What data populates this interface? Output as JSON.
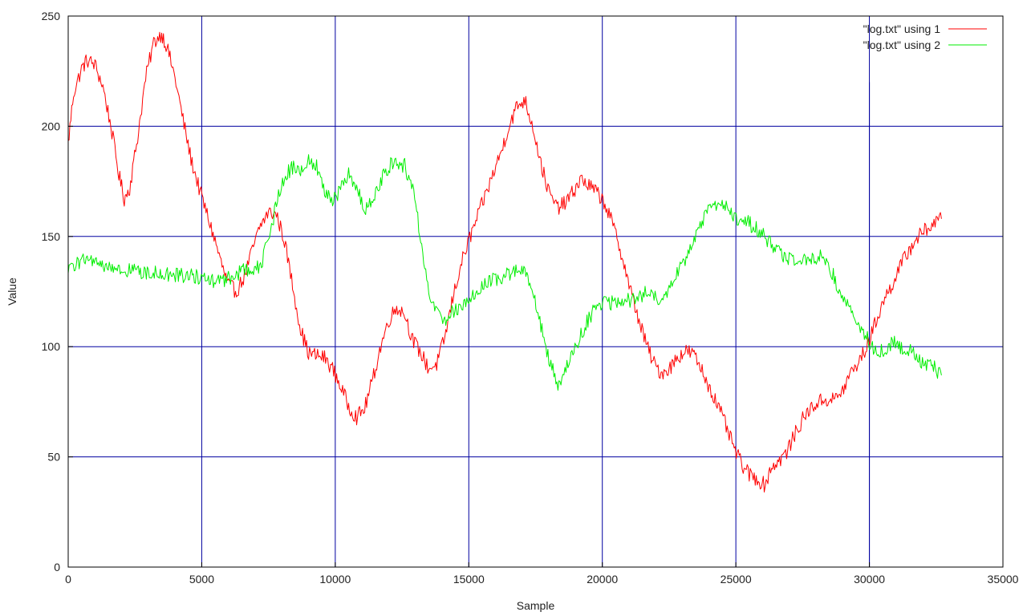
{
  "chart_data": {
    "type": "line",
    "title": "",
    "xlabel": "Sample",
    "ylabel": "Value",
    "xlim": [
      0,
      35000
    ],
    "ylim": [
      0,
      250
    ],
    "x_ticks": [
      0,
      5000,
      10000,
      15000,
      20000,
      25000,
      30000,
      35000
    ],
    "y_ticks": [
      0,
      50,
      100,
      150,
      200,
      250
    ],
    "grid": true,
    "legend_position": "top-right",
    "colors": {
      "grid": "#0000a0",
      "border": "#000000",
      "background": "#ffffff"
    },
    "series": [
      {
        "name": "\"log.txt\" using 1",
        "color": "#ff0000",
        "x": [
          0,
          200,
          500,
          700,
          1000,
          1300,
          1600,
          1900,
          2100,
          2300,
          2600,
          2900,
          3200,
          3500,
          3700,
          4000,
          4300,
          4600,
          4900,
          5200,
          5500,
          5800,
          6000,
          6300,
          6600,
          6900,
          7200,
          7500,
          7800,
          8100,
          8400,
          8700,
          9000,
          9300,
          9600,
          9900,
          10200,
          10500,
          10800,
          11100,
          11400,
          11700,
          12000,
          12300,
          12600,
          12900,
          13200,
          13500,
          13800,
          14100,
          14400,
          14700,
          15000,
          15300,
          15600,
          15900,
          16200,
          16500,
          16800,
          17100,
          17400,
          17700,
          18000,
          18300,
          18600,
          18900,
          19200,
          19500,
          19800,
          20100,
          20400,
          20700,
          21000,
          21300,
          21600,
          21900,
          22200,
          22500,
          22800,
          23100,
          23400,
          23700,
          24000,
          24300,
          24600,
          24900,
          25200,
          25500,
          25800,
          26100,
          26300,
          26600,
          26900,
          27200,
          27500,
          27800,
          28100,
          28400,
          28700,
          29000,
          29300,
          29600,
          29900,
          30200,
          30500,
          30800,
          31100,
          31400,
          31700,
          32000,
          32300,
          32700
        ],
        "y": [
          192,
          215,
          226,
          230,
          228,
          218,
          200,
          178,
          167,
          172,
          195,
          222,
          238,
          242,
          236,
          222,
          203,
          185,
          172,
          160,
          148,
          135,
          128,
          125,
          132,
          144,
          155,
          161,
          160,
          148,
          128,
          108,
          97,
          96,
          95,
          90,
          82,
          73,
          68,
          72,
          85,
          100,
          112,
          118,
          115,
          103,
          97,
          90,
          92,
          104,
          122,
          137,
          148,
          158,
          168,
          178,
          188,
          200,
          209,
          212,
          200,
          183,
          170,
          163,
          165,
          170,
          176,
          173,
          170,
          165,
          155,
          143,
          128,
          115,
          103,
          93,
          88,
          90,
          95,
          98,
          97,
          90,
          82,
          74,
          65,
          55,
          47,
          42,
          40,
          37,
          45,
          48,
          52,
          60,
          67,
          72,
          75,
          76,
          76,
          80,
          88,
          93,
          100,
          110,
          120,
          127,
          135,
          142,
          148,
          152,
          155,
          158
        ]
      },
      {
        "name": "\"log.txt\" using 2",
        "color": "#00ee00",
        "x": [
          0,
          300,
          600,
          900,
          1200,
          1500,
          1800,
          2100,
          2400,
          2700,
          3000,
          3300,
          3600,
          3900,
          4200,
          4500,
          4800,
          5100,
          5400,
          5700,
          6000,
          6300,
          6600,
          6900,
          7200,
          7500,
          7800,
          8100,
          8400,
          8700,
          9000,
          9300,
          9600,
          9900,
          10200,
          10500,
          10800,
          11100,
          11400,
          11700,
          12000,
          12300,
          12600,
          12900,
          13200,
          13500,
          13800,
          14100,
          14400,
          14700,
          15000,
          15300,
          15600,
          15900,
          16200,
          16500,
          16800,
          17100,
          17400,
          17700,
          18000,
          18300,
          18600,
          18900,
          19200,
          19500,
          19800,
          20100,
          20400,
          20700,
          21000,
          21300,
          21600,
          21900,
          22200,
          22500,
          22800,
          23100,
          23400,
          23700,
          24000,
          24300,
          24600,
          24900,
          25200,
          25500,
          25800,
          26100,
          26400,
          26700,
          27000,
          27300,
          27600,
          27900,
          28200,
          28500,
          28800,
          29100,
          29400,
          29700,
          30000,
          30300,
          30600,
          30900,
          31200,
          31500,
          31800,
          32100,
          32400,
          32700
        ],
        "y": [
          133,
          138,
          140,
          138,
          137,
          136,
          135,
          134,
          135,
          134,
          134,
          133,
          133,
          133,
          132,
          133,
          132,
          130,
          130,
          130,
          131,
          133,
          135,
          134,
          137,
          148,
          165,
          178,
          181,
          181,
          184,
          182,
          172,
          165,
          172,
          178,
          172,
          163,
          165,
          175,
          182,
          184,
          182,
          172,
          150,
          125,
          115,
          112,
          116,
          118,
          122,
          126,
          128,
          130,
          131,
          133,
          135,
          133,
          126,
          110,
          95,
          83,
          88,
          98,
          105,
          113,
          118,
          120,
          120,
          120,
          121,
          123,
          124,
          123,
          122,
          127,
          133,
          140,
          148,
          156,
          162,
          164,
          163,
          160,
          157,
          156,
          153,
          150,
          145,
          142,
          140,
          139,
          140,
          140,
          141,
          137,
          128,
          120,
          113,
          108,
          102,
          98,
          99,
          102,
          100,
          98,
          95,
          92,
          91,
          87
        ]
      }
    ],
    "annotations": [
      {
        "type": "vline",
        "x": 30000,
        "y_from": 0,
        "y_to": 220
      }
    ]
  }
}
